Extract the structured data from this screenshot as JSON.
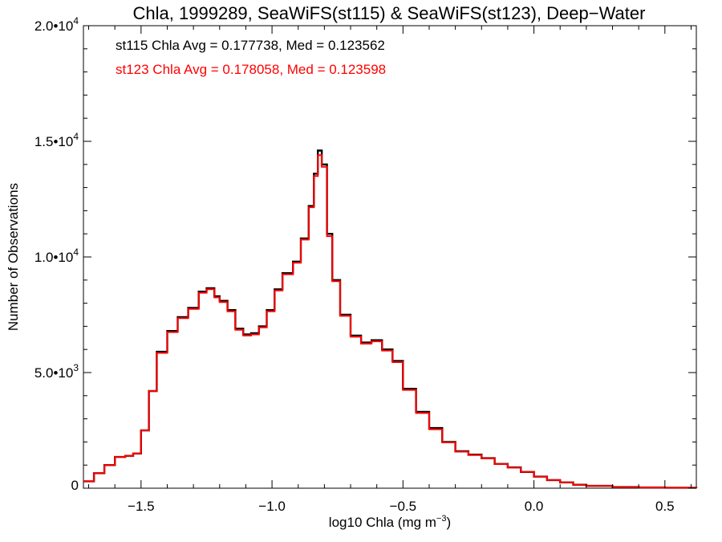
{
  "chart_data": {
    "type": "line",
    "step": true,
    "title": "Chla, 1999289, SeaWiFS(st115) & SeaWiFS(st123), Deep−Water",
    "xlabel": "log10 Chla (mg m",
    "xlabel_sup": "−3",
    "xlabel_end": ")",
    "ylabel": "Number of Observations",
    "xlim": [
      -1.72,
      0.62
    ],
    "ylim": [
      0,
      20000
    ],
    "grid": false,
    "x_ticks": [
      {
        "value": -1.5,
        "label": "−1.5"
      },
      {
        "value": -1.0,
        "label": "−1.0"
      },
      {
        "value": -0.5,
        "label": "−0.5"
      },
      {
        "value": 0.0,
        "label": "0.0"
      },
      {
        "value": 0.5,
        "label": "0.5"
      }
    ],
    "y_ticks": [
      {
        "value": 0,
        "base": "0",
        "exp": ""
      },
      {
        "value": 5000,
        "base": "5.0•10",
        "exp": "3"
      },
      {
        "value": 10000,
        "base": "1.0•10",
        "exp": "4"
      },
      {
        "value": 15000,
        "base": "1.5•10",
        "exp": "4"
      },
      {
        "value": 20000,
        "base": "2.0•10",
        "exp": "4"
      }
    ],
    "annotations": [
      {
        "text": "st115 Chla Avg = 0.177738, Med = 0.123562",
        "color": "#000000"
      },
      {
        "text": "st123 Chla Avg = 0.178058, Med = 0.123598",
        "color": "#ff0000"
      }
    ],
    "series": [
      {
        "color": "#000000",
        "points": [
          [
            -1.72,
            300
          ],
          [
            -1.68,
            650
          ],
          [
            -1.64,
            1000
          ],
          [
            -1.6,
            1350
          ],
          [
            -1.56,
            1400
          ],
          [
            -1.53,
            1500
          ],
          [
            -1.5,
            2500
          ],
          [
            -1.47,
            4200
          ],
          [
            -1.44,
            5900
          ],
          [
            -1.4,
            6800
          ],
          [
            -1.36,
            7400
          ],
          [
            -1.32,
            7800
          ],
          [
            -1.28,
            8500
          ],
          [
            -1.25,
            8650
          ],
          [
            -1.22,
            8300
          ],
          [
            -1.2,
            8100
          ],
          [
            -1.17,
            7700
          ],
          [
            -1.14,
            6900
          ],
          [
            -1.11,
            6650
          ],
          [
            -1.08,
            6700
          ],
          [
            -1.05,
            7000
          ],
          [
            -1.02,
            7700
          ],
          [
            -0.99,
            8600
          ],
          [
            -0.96,
            9300
          ],
          [
            -0.92,
            9800
          ],
          [
            -0.89,
            10800
          ],
          [
            -0.86,
            12200
          ],
          [
            -0.84,
            13600
          ],
          [
            -0.825,
            14600
          ],
          [
            -0.81,
            14000
          ],
          [
            -0.79,
            11000
          ],
          [
            -0.77,
            9000
          ],
          [
            -0.74,
            7500
          ],
          [
            -0.7,
            6600
          ],
          [
            -0.66,
            6300
          ],
          [
            -0.62,
            6400
          ],
          [
            -0.58,
            6000
          ],
          [
            -0.54,
            5500
          ],
          [
            -0.5,
            4300
          ],
          [
            -0.45,
            3300
          ],
          [
            -0.4,
            2600
          ],
          [
            -0.35,
            2000
          ],
          [
            -0.3,
            1600
          ],
          [
            -0.25,
            1450
          ],
          [
            -0.2,
            1300
          ],
          [
            -0.15,
            1050
          ],
          [
            -0.1,
            900
          ],
          [
            -0.05,
            700
          ],
          [
            0.0,
            500
          ],
          [
            0.05,
            350
          ],
          [
            0.1,
            250
          ],
          [
            0.15,
            150
          ],
          [
            0.2,
            100
          ],
          [
            0.3,
            50
          ],
          [
            0.4,
            30
          ],
          [
            0.5,
            20
          ],
          [
            0.62,
            10
          ]
        ]
      },
      {
        "color": "#ff0000",
        "points": [
          [
            -1.72,
            300
          ],
          [
            -1.68,
            650
          ],
          [
            -1.64,
            1000
          ],
          [
            -1.6,
            1350
          ],
          [
            -1.56,
            1400
          ],
          [
            -1.53,
            1500
          ],
          [
            -1.5,
            2500
          ],
          [
            -1.47,
            4200
          ],
          [
            -1.44,
            5850
          ],
          [
            -1.4,
            6750
          ],
          [
            -1.36,
            7350
          ],
          [
            -1.32,
            7750
          ],
          [
            -1.28,
            8450
          ],
          [
            -1.25,
            8600
          ],
          [
            -1.22,
            8250
          ],
          [
            -1.2,
            8050
          ],
          [
            -1.17,
            7650
          ],
          [
            -1.14,
            6850
          ],
          [
            -1.11,
            6600
          ],
          [
            -1.08,
            6650
          ],
          [
            -1.05,
            6950
          ],
          [
            -1.02,
            7650
          ],
          [
            -0.99,
            8550
          ],
          [
            -0.96,
            9250
          ],
          [
            -0.92,
            9750
          ],
          [
            -0.89,
            10750
          ],
          [
            -0.86,
            12150
          ],
          [
            -0.84,
            13500
          ],
          [
            -0.825,
            14400
          ],
          [
            -0.81,
            13900
          ],
          [
            -0.79,
            10900
          ],
          [
            -0.77,
            8950
          ],
          [
            -0.74,
            7450
          ],
          [
            -0.7,
            6550
          ],
          [
            -0.66,
            6250
          ],
          [
            -0.62,
            6350
          ],
          [
            -0.58,
            5950
          ],
          [
            -0.54,
            5450
          ],
          [
            -0.5,
            4250
          ],
          [
            -0.45,
            3250
          ],
          [
            -0.4,
            2550
          ],
          [
            -0.35,
            1980
          ],
          [
            -0.3,
            1580
          ],
          [
            -0.25,
            1430
          ],
          [
            -0.2,
            1290
          ],
          [
            -0.15,
            1040
          ],
          [
            -0.1,
            890
          ],
          [
            -0.05,
            700
          ],
          [
            0.0,
            500
          ],
          [
            0.05,
            350
          ],
          [
            0.1,
            250
          ],
          [
            0.15,
            150
          ],
          [
            0.2,
            100
          ],
          [
            0.3,
            50
          ],
          [
            0.4,
            30
          ],
          [
            0.5,
            20
          ],
          [
            0.62,
            10
          ]
        ]
      }
    ]
  }
}
